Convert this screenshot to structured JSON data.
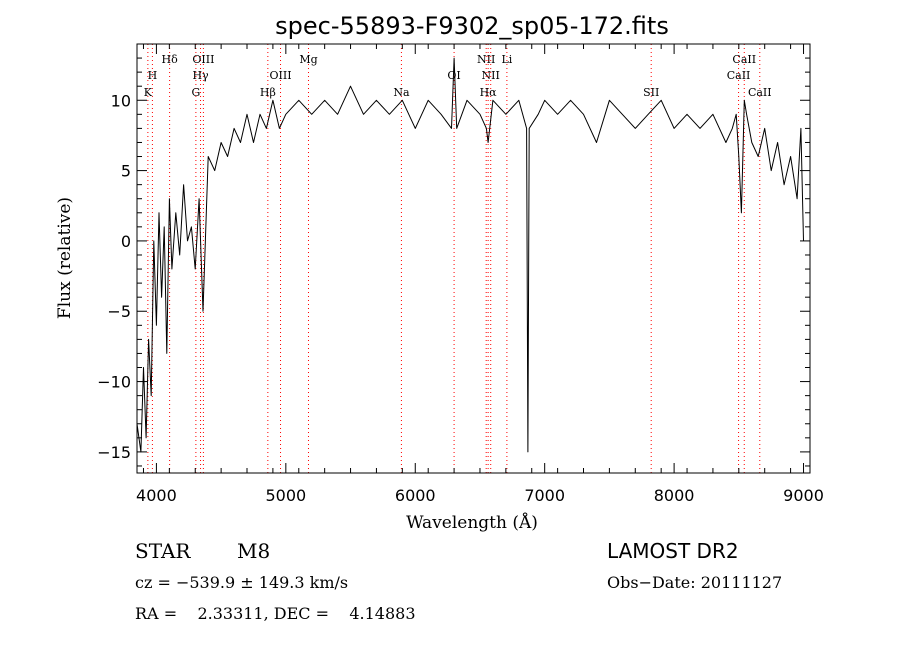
{
  "chart_data": {
    "type": "line",
    "title": "spec-55893-F9302_sp05-172.fits",
    "xlabel": "Wavelength (Å)",
    "ylabel": "Flux (relative)",
    "xlim": [
      3850,
      9050
    ],
    "ylim": [
      -16.5,
      14
    ],
    "x_ticks": [
      4000,
      5000,
      6000,
      7000,
      8000,
      9000
    ],
    "y_ticks": [
      -15,
      -10,
      -5,
      0,
      5,
      10
    ],
    "grid": false,
    "line_color": "#000000",
    "marker_color": "#ff0000",
    "spectral_lines": [
      {
        "label": "K",
        "x": 3934,
        "row": 3
      },
      {
        "label": "H",
        "x": 3969,
        "row": 2
      },
      {
        "label": "Hδ",
        "x": 4102,
        "row": 1
      },
      {
        "label": "Hγ",
        "x": 4341,
        "row": 2
      },
      {
        "label": "G",
        "x": 4305,
        "row": 3
      },
      {
        "label": "OIII",
        "x": 4363,
        "row": 1
      },
      {
        "label": "Hβ",
        "x": 4861,
        "row": 3
      },
      {
        "label": "OIII",
        "x": 4959,
        "row": 2
      },
      {
        "label": "Mg",
        "x": 5175,
        "row": 1
      },
      {
        "label": "Na",
        "x": 5893,
        "row": 3
      },
      {
        "label": "OI",
        "x": 6300,
        "row": 2
      },
      {
        "label": "NII",
        "x": 6548,
        "row": 1
      },
      {
        "label": "NII",
        "x": 6583,
        "row": 2
      },
      {
        "label": "Hα",
        "x": 6563,
        "row": 3
      },
      {
        "label": "Li",
        "x": 6708,
        "row": 1
      },
      {
        "label": "SII",
        "x": 7823,
        "row": 3
      },
      {
        "label": "CaII",
        "x": 8542,
        "row": 1
      },
      {
        "label": "CaII",
        "x": 8498,
        "row": 2
      },
      {
        "label": "CaII",
        "x": 8662,
        "row": 3
      }
    ],
    "series": [
      {
        "x": [
          3850,
          3880,
          3900,
          3920,
          3940,
          3960,
          3980,
          4000,
          4020,
          4040,
          4060,
          4080,
          4100,
          4120,
          4150,
          4180,
          4210,
          4240,
          4270,
          4300,
          4330,
          4360,
          4400,
          4450,
          4500,
          4550,
          4600,
          4650,
          4700,
          4750,
          4800,
          4850,
          4900,
          4950,
          5000,
          5100,
          5200,
          5300,
          5400,
          5500,
          5600,
          5700,
          5800,
          5900,
          6000,
          6100,
          6200,
          6280,
          6300,
          6320,
          6400,
          6500,
          6550,
          6563,
          6600,
          6700,
          6800,
          6860,
          6870,
          6880,
          6950,
          7000,
          7100,
          7200,
          7300,
          7400,
          7500,
          7600,
          7700,
          7800,
          7900,
          8000,
          8100,
          8200,
          8300,
          8400,
          8450,
          8480,
          8500,
          8520,
          8542,
          8560,
          8600,
          8650,
          8700,
          8750,
          8800,
          8850,
          8900,
          8950,
          8980,
          9000
        ],
        "y": [
          -13,
          -15,
          -9,
          -14,
          -7,
          -11,
          0,
          -6,
          2,
          -4,
          1,
          -8,
          3,
          -2,
          2,
          -1,
          4,
          0,
          1,
          -2,
          3,
          -5,
          6,
          5,
          7,
          6,
          8,
          7,
          9,
          7,
          9,
          8,
          10,
          8,
          9,
          10,
          9,
          10,
          9,
          11,
          9,
          10,
          9,
          10,
          8,
          10,
          9,
          8,
          13,
          8,
          10,
          9,
          8,
          7,
          10,
          9,
          10,
          8,
          -15,
          8,
          9,
          10,
          9,
          10,
          9,
          7,
          10,
          9,
          8,
          9,
          10,
          8,
          9,
          8,
          9,
          7,
          8,
          9,
          6,
          2,
          10,
          9,
          7,
          6,
          8,
          5,
          7,
          4,
          6,
          3,
          8,
          0
        ]
      }
    ]
  },
  "info": {
    "object_class": "STAR",
    "subclass": "M8",
    "survey": "LAMOST DR2",
    "cz": "cz = −539.9 ± 149.3 km/s",
    "obs_date": "Obs−Date: 20111127",
    "coords": "RA =    2.33311, DEC =    4.14883"
  }
}
